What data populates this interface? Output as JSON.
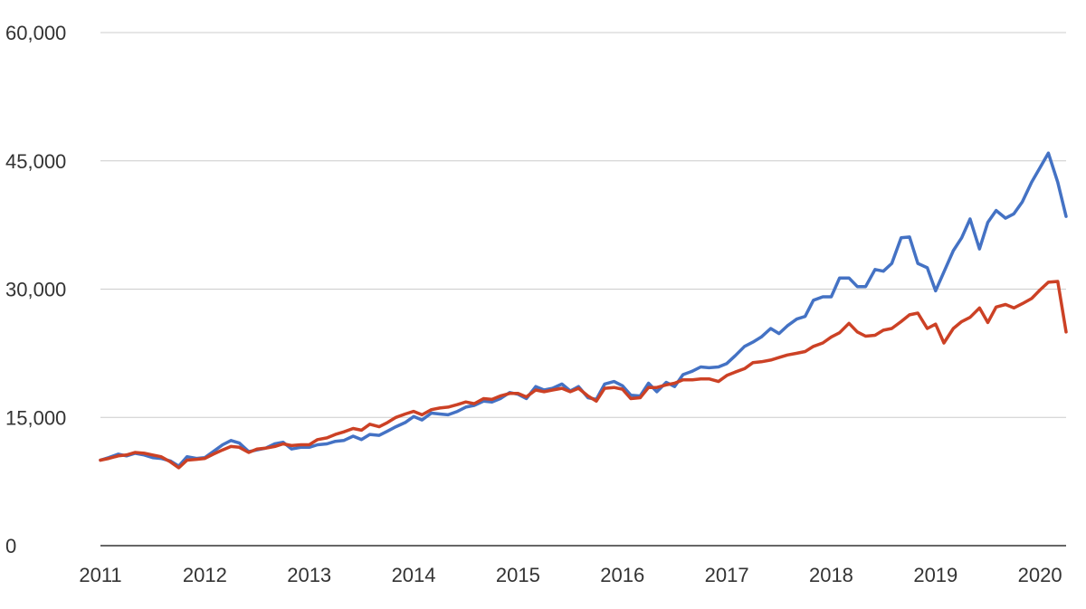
{
  "chart_data": {
    "type": "line",
    "title": "",
    "xlabel": "",
    "ylabel": "",
    "xlim": [
      2011,
      2020.25
    ],
    "ylim": [
      0,
      60000
    ],
    "grid": true,
    "legend": "none",
    "x_ticks": [
      {
        "value": 2011,
        "label": "2011"
      },
      {
        "value": 2012,
        "label": "2012"
      },
      {
        "value": 2013,
        "label": "2013"
      },
      {
        "value": 2014,
        "label": "2014"
      },
      {
        "value": 2015,
        "label": "2015"
      },
      {
        "value": 2016,
        "label": "2016"
      },
      {
        "value": 2017,
        "label": "2017"
      },
      {
        "value": 2018,
        "label": "2018"
      },
      {
        "value": 2019,
        "label": "2019"
      },
      {
        "value": 2020,
        "label": "2020"
      }
    ],
    "y_ticks": [
      {
        "value": 0,
        "label": "0"
      },
      {
        "value": 15000,
        "label": "15,000"
      },
      {
        "value": 30000,
        "label": "30,000"
      },
      {
        "value": 45000,
        "label": "45,000"
      },
      {
        "value": 60000,
        "label": "60,000"
      }
    ],
    "series": [
      {
        "color": "#4472c4",
        "points": [
          [
            2011.0,
            10000
          ],
          [
            2011.08,
            10300
          ],
          [
            2011.17,
            10700
          ],
          [
            2011.25,
            10500
          ],
          [
            2011.33,
            10800
          ],
          [
            2011.42,
            10600
          ],
          [
            2011.5,
            10300
          ],
          [
            2011.58,
            10200
          ],
          [
            2011.67,
            9900
          ],
          [
            2011.75,
            9300
          ],
          [
            2011.83,
            10400
          ],
          [
            2011.92,
            10200
          ],
          [
            2012.0,
            10300
          ],
          [
            2012.08,
            11000
          ],
          [
            2012.17,
            11800
          ],
          [
            2012.25,
            12300
          ],
          [
            2012.33,
            12000
          ],
          [
            2012.42,
            11000
          ],
          [
            2012.5,
            11200
          ],
          [
            2012.58,
            11400
          ],
          [
            2012.67,
            11900
          ],
          [
            2012.75,
            12100
          ],
          [
            2012.83,
            11300
          ],
          [
            2012.92,
            11500
          ],
          [
            2013.0,
            11500
          ],
          [
            2013.08,
            11800
          ],
          [
            2013.17,
            11900
          ],
          [
            2013.25,
            12200
          ],
          [
            2013.33,
            12300
          ],
          [
            2013.42,
            12800
          ],
          [
            2013.5,
            12400
          ],
          [
            2013.58,
            13000
          ],
          [
            2013.67,
            12900
          ],
          [
            2013.75,
            13400
          ],
          [
            2013.83,
            13900
          ],
          [
            2013.92,
            14400
          ],
          [
            2014.0,
            15100
          ],
          [
            2014.08,
            14700
          ],
          [
            2014.17,
            15500
          ],
          [
            2014.25,
            15400
          ],
          [
            2014.33,
            15300
          ],
          [
            2014.42,
            15700
          ],
          [
            2014.5,
            16200
          ],
          [
            2014.58,
            16400
          ],
          [
            2014.67,
            16900
          ],
          [
            2014.75,
            16800
          ],
          [
            2014.83,
            17200
          ],
          [
            2014.92,
            17900
          ],
          [
            2015.0,
            17700
          ],
          [
            2015.08,
            17200
          ],
          [
            2015.17,
            18600
          ],
          [
            2015.25,
            18200
          ],
          [
            2015.33,
            18400
          ],
          [
            2015.42,
            18900
          ],
          [
            2015.5,
            18100
          ],
          [
            2015.58,
            18600
          ],
          [
            2015.67,
            17300
          ],
          [
            2015.75,
            17100
          ],
          [
            2015.83,
            18900
          ],
          [
            2015.92,
            19200
          ],
          [
            2016.0,
            18700
          ],
          [
            2016.08,
            17600
          ],
          [
            2016.17,
            17500
          ],
          [
            2016.25,
            19000
          ],
          [
            2016.33,
            18000
          ],
          [
            2016.42,
            19100
          ],
          [
            2016.5,
            18600
          ],
          [
            2016.58,
            20000
          ],
          [
            2016.67,
            20400
          ],
          [
            2016.75,
            20900
          ],
          [
            2016.83,
            20800
          ],
          [
            2016.92,
            20900
          ],
          [
            2017.0,
            21300
          ],
          [
            2017.08,
            22200
          ],
          [
            2017.17,
            23300
          ],
          [
            2017.25,
            23800
          ],
          [
            2017.33,
            24400
          ],
          [
            2017.42,
            25400
          ],
          [
            2017.5,
            24800
          ],
          [
            2017.58,
            25700
          ],
          [
            2017.67,
            26500
          ],
          [
            2017.75,
            26800
          ],
          [
            2017.83,
            28700
          ],
          [
            2017.92,
            29100
          ],
          [
            2018.0,
            29100
          ],
          [
            2018.08,
            31300
          ],
          [
            2018.17,
            31300
          ],
          [
            2018.25,
            30300
          ],
          [
            2018.33,
            30300
          ],
          [
            2018.42,
            32300
          ],
          [
            2018.5,
            32100
          ],
          [
            2018.58,
            33000
          ],
          [
            2018.67,
            36000
          ],
          [
            2018.75,
            36100
          ],
          [
            2018.83,
            33000
          ],
          [
            2018.92,
            32500
          ],
          [
            2019.0,
            29800
          ],
          [
            2019.08,
            32000
          ],
          [
            2019.17,
            34500
          ],
          [
            2019.25,
            36000
          ],
          [
            2019.33,
            38200
          ],
          [
            2019.42,
            34700
          ],
          [
            2019.5,
            37800
          ],
          [
            2019.58,
            39200
          ],
          [
            2019.67,
            38300
          ],
          [
            2019.75,
            38800
          ],
          [
            2019.83,
            40200
          ],
          [
            2019.92,
            42500
          ],
          [
            2020.0,
            44200
          ],
          [
            2020.08,
            45900
          ],
          [
            2020.17,
            42500
          ],
          [
            2020.25,
            38500
          ]
        ]
      },
      {
        "color": "#cc4125",
        "points": [
          [
            2011.0,
            10000
          ],
          [
            2011.08,
            10200
          ],
          [
            2011.17,
            10500
          ],
          [
            2011.25,
            10600
          ],
          [
            2011.33,
            10900
          ],
          [
            2011.42,
            10800
          ],
          [
            2011.5,
            10600
          ],
          [
            2011.58,
            10400
          ],
          [
            2011.67,
            9800
          ],
          [
            2011.75,
            9100
          ],
          [
            2011.83,
            10000
          ],
          [
            2011.92,
            10100
          ],
          [
            2012.0,
            10200
          ],
          [
            2012.08,
            10700
          ],
          [
            2012.17,
            11200
          ],
          [
            2012.25,
            11600
          ],
          [
            2012.33,
            11500
          ],
          [
            2012.42,
            10900
          ],
          [
            2012.5,
            11300
          ],
          [
            2012.58,
            11400
          ],
          [
            2012.67,
            11600
          ],
          [
            2012.75,
            11900
          ],
          [
            2012.83,
            11700
          ],
          [
            2012.92,
            11800
          ],
          [
            2013.0,
            11800
          ],
          [
            2013.08,
            12400
          ],
          [
            2013.17,
            12600
          ],
          [
            2013.25,
            13000
          ],
          [
            2013.33,
            13300
          ],
          [
            2013.42,
            13700
          ],
          [
            2013.5,
            13500
          ],
          [
            2013.58,
            14200
          ],
          [
            2013.67,
            13900
          ],
          [
            2013.75,
            14400
          ],
          [
            2013.83,
            15000
          ],
          [
            2013.92,
            15400
          ],
          [
            2014.0,
            15700
          ],
          [
            2014.08,
            15300
          ],
          [
            2014.17,
            15900
          ],
          [
            2014.25,
            16100
          ],
          [
            2014.33,
            16200
          ],
          [
            2014.42,
            16500
          ],
          [
            2014.5,
            16800
          ],
          [
            2014.58,
            16600
          ],
          [
            2014.67,
            17200
          ],
          [
            2014.75,
            17100
          ],
          [
            2014.83,
            17500
          ],
          [
            2014.92,
            17800
          ],
          [
            2015.0,
            17800
          ],
          [
            2015.08,
            17400
          ],
          [
            2015.17,
            18200
          ],
          [
            2015.25,
            18000
          ],
          [
            2015.33,
            18200
          ],
          [
            2015.42,
            18400
          ],
          [
            2015.5,
            18000
          ],
          [
            2015.58,
            18400
          ],
          [
            2015.67,
            17500
          ],
          [
            2015.75,
            16900
          ],
          [
            2015.83,
            18400
          ],
          [
            2015.92,
            18500
          ],
          [
            2016.0,
            18300
          ],
          [
            2016.08,
            17200
          ],
          [
            2016.17,
            17300
          ],
          [
            2016.25,
            18500
          ],
          [
            2016.33,
            18500
          ],
          [
            2016.42,
            18800
          ],
          [
            2016.5,
            19000
          ],
          [
            2016.58,
            19400
          ],
          [
            2016.67,
            19400
          ],
          [
            2016.75,
            19500
          ],
          [
            2016.83,
            19500
          ],
          [
            2016.92,
            19200
          ],
          [
            2017.0,
            19900
          ],
          [
            2017.08,
            20300
          ],
          [
            2017.17,
            20700
          ],
          [
            2017.25,
            21400
          ],
          [
            2017.33,
            21500
          ],
          [
            2017.42,
            21700
          ],
          [
            2017.5,
            22000
          ],
          [
            2017.58,
            22300
          ],
          [
            2017.67,
            22500
          ],
          [
            2017.75,
            22700
          ],
          [
            2017.83,
            23300
          ],
          [
            2017.92,
            23700
          ],
          [
            2018.0,
            24400
          ],
          [
            2018.08,
            24900
          ],
          [
            2018.17,
            26000
          ],
          [
            2018.25,
            25000
          ],
          [
            2018.33,
            24500
          ],
          [
            2018.42,
            24600
          ],
          [
            2018.5,
            25200
          ],
          [
            2018.58,
            25400
          ],
          [
            2018.67,
            26200
          ],
          [
            2018.75,
            27000
          ],
          [
            2018.83,
            27200
          ],
          [
            2018.92,
            25400
          ],
          [
            2019.0,
            25900
          ],
          [
            2019.08,
            23700
          ],
          [
            2019.17,
            25400
          ],
          [
            2019.25,
            26200
          ],
          [
            2019.33,
            26700
          ],
          [
            2019.42,
            27800
          ],
          [
            2019.5,
            26100
          ],
          [
            2019.58,
            27900
          ],
          [
            2019.67,
            28200
          ],
          [
            2019.75,
            27800
          ],
          [
            2019.83,
            28300
          ],
          [
            2019.92,
            28900
          ],
          [
            2020.0,
            29900
          ],
          [
            2020.08,
            30800
          ],
          [
            2020.17,
            30900
          ],
          [
            2020.25,
            25000
          ]
        ]
      }
    ]
  }
}
